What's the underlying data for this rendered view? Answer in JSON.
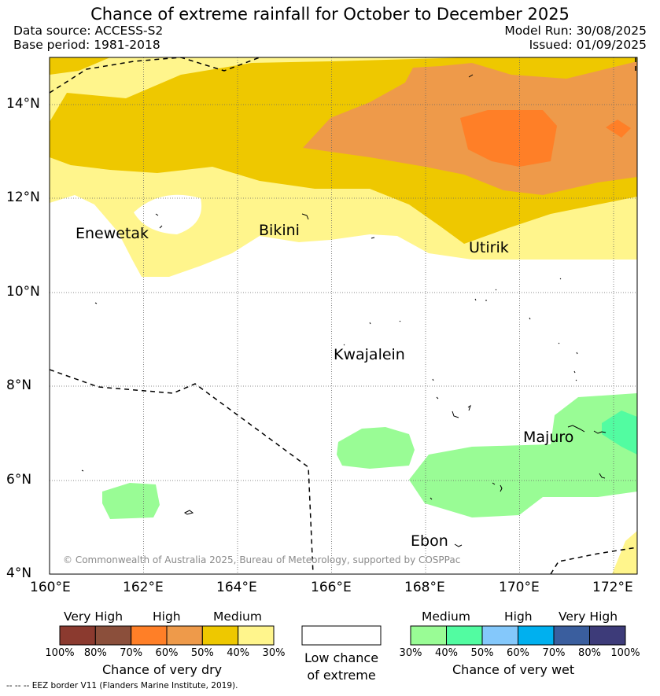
{
  "header": {
    "title": "Chance of extreme rainfall for October to December 2025",
    "data_source": "Data source: ACCESS-S2",
    "base_period": "Base period: 1981-2018",
    "model_run": "Model Run: 30/08/2025",
    "issued": "Issued: 01/09/2025"
  },
  "map": {
    "lon_range": [
      160,
      172.5
    ],
    "lat_range": [
      4,
      15
    ],
    "x_ticks": [
      "160°E",
      "162°E",
      "164°E",
      "166°E",
      "168°E",
      "170°E",
      "172°E"
    ],
    "y_ticks": [
      "4°N",
      "6°N",
      "8°N",
      "10°N",
      "12°N",
      "14°N"
    ],
    "places": [
      {
        "name": "Enewetak",
        "lon": 162.2,
        "lat": 11.35
      },
      {
        "name": "Bikini",
        "lon": 165.2,
        "lat": 11.4
      },
      {
        "name": "Utirik",
        "lon": 169.8,
        "lat": 10.9
      },
      {
        "name": "Kwajalein",
        "lon": 167.4,
        "lat": 8.7
      },
      {
        "name": "Majuro",
        "lon": 171.2,
        "lat": 7.1
      },
      {
        "name": "Ebon",
        "lon": 168.7,
        "lat": 4.7
      }
    ],
    "copyright": "© Commonwealth of Australia 2025, Bureau of Meteorology, supported by COSPPac"
  },
  "legend": {
    "dry": {
      "categories": [
        "Very High",
        "High",
        "Medium"
      ],
      "colors": [
        "#8b3a2f",
        "#8b4f3b",
        "#ff7f27",
        "#ee9a4a",
        "#eec800",
        "#fff58c"
      ],
      "ticks": [
        "100%",
        "80%",
        "70%",
        "60%",
        "50%",
        "40%",
        "30%"
      ],
      "title": "Chance of very dry"
    },
    "low": {
      "line1": "Low chance",
      "line2": "of extreme"
    },
    "wet": {
      "categories": [
        "Medium",
        "High",
        "Very High"
      ],
      "colors": [
        "#99fc95",
        "#52fca1",
        "#84c8fb",
        "#00b0ef",
        "#3a5e9e",
        "#3d3b79"
      ],
      "ticks": [
        "30%",
        "40%",
        "50%",
        "60%",
        "70%",
        "80%",
        "100%"
      ],
      "title": "Chance of very wet"
    },
    "eez_note": "-- -- -- EEZ border V11 (Flanders Marine Institute, 2019)."
  }
}
